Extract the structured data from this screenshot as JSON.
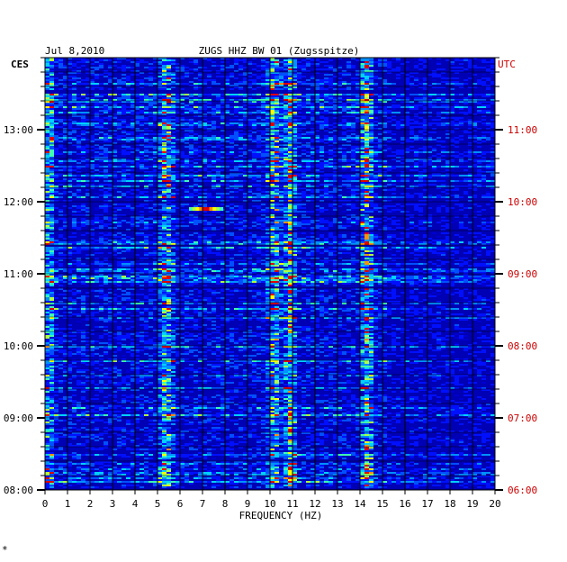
{
  "chart_data": {
    "type": "heatmap",
    "header_date": "Jul 8,2010",
    "title": "ZUGS HHZ BW 01 (Zugsspitze)",
    "left_zone_label": "CES",
    "right_zone_label": "UTC",
    "xlabel": "FREQUENCY (HZ)",
    "xlim": [
      0,
      20
    ],
    "x_ticks": [
      "0",
      "1",
      "2",
      "3",
      "4",
      "5",
      "6",
      "7",
      "8",
      "9",
      "10",
      "11",
      "12",
      "13",
      "14",
      "15",
      "16",
      "17",
      "18",
      "19",
      "20"
    ],
    "y_ticks_left": [
      "13:00",
      "12:00",
      "11:00",
      "10:00",
      "09:00",
      "08:00"
    ],
    "y_ticks_right": [
      "11:00",
      "10:00",
      "09:00",
      "08:00",
      "07:00",
      "06:00"
    ],
    "time_range_local": [
      "08:00",
      "14:00"
    ],
    "colors": {
      "background_low": "#0000b4",
      "grid": "#000000",
      "text": "#000000",
      "utc_text": "#cc0000"
    },
    "notable_bands_hz": [
      5.3,
      10.1,
      10.8,
      14.2
    ],
    "events": [
      {
        "time_local": "11:54",
        "freq_range_hz": [
          6.4,
          7.9
        ],
        "intensity": "high"
      }
    ],
    "corner_mark": "*"
  }
}
